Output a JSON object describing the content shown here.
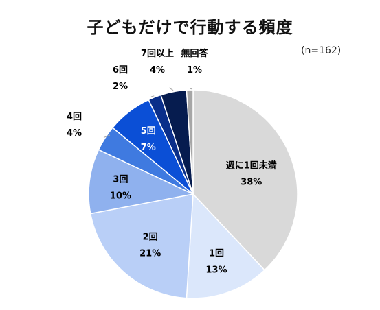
{
  "chart_data": {
    "type": "pie",
    "title": "子どもだけで行動する頻度",
    "note": "(n=162)",
    "slices": [
      {
        "label": "週に1回未満",
        "value": 38,
        "value_label": "38%",
        "color": "#d9d9d9",
        "text_color": "#000000"
      },
      {
        "label": "1回",
        "value": 13,
        "value_label": "13%",
        "color": "#dbe7fb",
        "text_color": "#000000"
      },
      {
        "label": "2回",
        "value": 21,
        "value_label": "21%",
        "color": "#b9cff7",
        "text_color": "#000000"
      },
      {
        "label": "3回",
        "value": 10,
        "value_label": "10%",
        "color": "#8fb1ee",
        "text_color": "#000000"
      },
      {
        "label": "4回",
        "value": 4,
        "value_label": "4%",
        "color": "#3f7ae0",
        "text_color": "#000000"
      },
      {
        "label": "5回",
        "value": 7,
        "value_label": "7%",
        "color": "#0b4fd6",
        "text_color": "#ffffff"
      },
      {
        "label": "6回",
        "value": 2,
        "value_label": "2%",
        "color": "#0a2f8a",
        "text_color": "#000000"
      },
      {
        "label": "7回以上",
        "value": 4,
        "value_label": "4%",
        "color": "#061c4f",
        "text_color": "#000000"
      },
      {
        "label": "無回答",
        "value": 1,
        "value_label": "1%",
        "color": "#a6a6a6",
        "text_color": "#000000"
      }
    ]
  }
}
